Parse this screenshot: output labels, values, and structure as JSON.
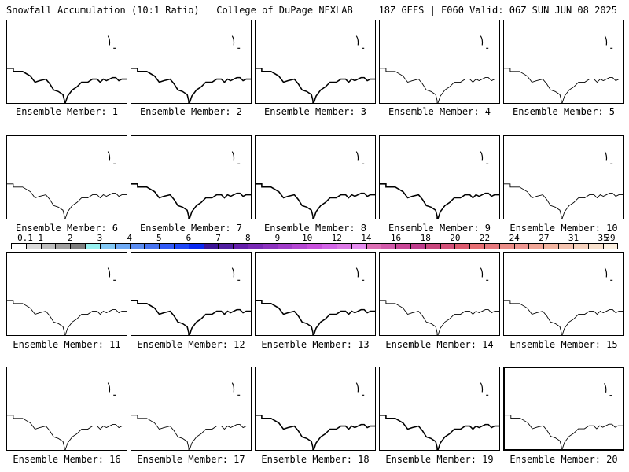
{
  "header": {
    "title_left": "Snowfall Accumulation (10:1 Ratio) | College of DuPage NEXLAB",
    "title_right": "18Z GEFS | F060 Valid: 06Z SUN JUN 08 2025"
  },
  "members": [
    {
      "label": "Ensemble Member: 1",
      "line": "bold"
    },
    {
      "label": "Ensemble Member: 2",
      "line": "bold"
    },
    {
      "label": "Ensemble Member: 3",
      "line": "bold"
    },
    {
      "label": "Ensemble Member: 4",
      "line": "thin"
    },
    {
      "label": "Ensemble Member: 5",
      "line": "thin"
    },
    {
      "label": "Ensemble Member: 6",
      "line": "thin"
    },
    {
      "label": "Ensemble Member: 7",
      "line": "bold"
    },
    {
      "label": "Ensemble Member: 8",
      "line": "bold"
    },
    {
      "label": "Ensemble Member: 9",
      "line": "bold"
    },
    {
      "label": "Ensemble Member: 10",
      "line": "thin"
    },
    {
      "label": "Ensemble Member: 11",
      "line": "thin"
    },
    {
      "label": "Ensemble Member: 12",
      "line": "bold"
    },
    {
      "label": "Ensemble Member: 13",
      "line": "bold"
    },
    {
      "label": "Ensemble Member: 14",
      "line": "thin"
    },
    {
      "label": "Ensemble Member: 15",
      "line": "thin"
    },
    {
      "label": "Ensemble Member: 16",
      "line": "thin"
    },
    {
      "label": "Ensemble Member: 17",
      "line": "thin"
    },
    {
      "label": "Ensemble Member: 18",
      "line": "bold"
    },
    {
      "label": "Ensemble Member: 19",
      "line": "bold"
    },
    {
      "label": "Ensemble Member: 20",
      "line": "thin"
    }
  ],
  "scale": {
    "labels": [
      "0.1",
      "1",
      "2",
      "3",
      "4",
      "5",
      "6",
      "7",
      "8",
      "9",
      "10",
      "12",
      "14",
      "16",
      "18",
      "20",
      "22",
      "24",
      "27",
      "31",
      "35",
      "39"
    ],
    "colors": [
      "#ffffff",
      "#dcdcdc",
      "#bebebe",
      "#a0a0a0",
      "#7d7d7d",
      "#96f0f0",
      "#82c8f5",
      "#6eaaf5",
      "#5a8cf0",
      "#4673f0",
      "#325af5",
      "#1e46f5",
      "#0a28f0",
      "#3c1496",
      "#501ea0",
      "#641eaa",
      "#7828b4",
      "#8c32be",
      "#a03cc8",
      "#b446d2",
      "#c850dc",
      "#d264e6",
      "#dc78e6",
      "#e68cf0",
      "#dc6eb4",
      "#d25aaa",
      "#c84696",
      "#be3c8c",
      "#c8467d",
      "#d25078",
      "#dc5a6e",
      "#e66e73",
      "#e6787d",
      "#ea8c87",
      "#ee9691",
      "#f0a596",
      "#f2b4a0",
      "#f4c3af",
      "#f6d2be",
      "#f8e1cd",
      "#fbf0e1"
    ]
  }
}
